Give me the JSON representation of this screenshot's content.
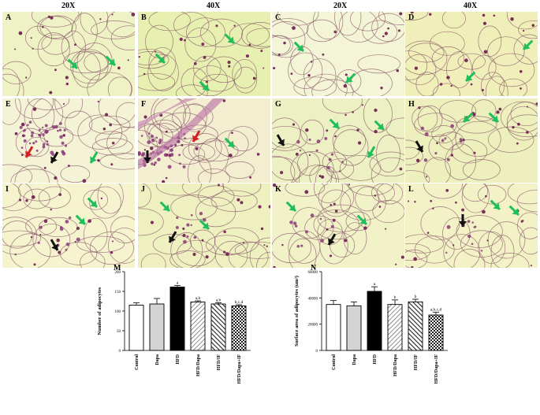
{
  "header": {
    "magnifications": [
      "20X",
      "40X",
      "20X",
      "40X"
    ]
  },
  "panels": [
    {
      "label": "A",
      "tone": "#eff2c4"
    },
    {
      "label": "B",
      "tone": "#e7f0b0"
    },
    {
      "label": "C",
      "tone": "#f4f5d6"
    },
    {
      "label": "D",
      "tone": "#f1efb9"
    },
    {
      "label": "E",
      "tone": "#f5f3d6"
    },
    {
      "label": "F",
      "tone": "#f3eed0"
    },
    {
      "label": "G",
      "tone": "#edf0c2"
    },
    {
      "label": "H",
      "tone": "#edf0bd"
    },
    {
      "label": "I",
      "tone": "#f6f3cf"
    },
    {
      "label": "J",
      "tone": "#eef0c0"
    },
    {
      "label": "K",
      "tone": "#f1f2c8"
    },
    {
      "label": "L",
      "tone": "#f3f1c6"
    }
  ],
  "arrow_colors": {
    "green": "#1fbf5a",
    "black": "#111111",
    "red": "#d42020"
  },
  "chart_data": [
    {
      "panel": "M",
      "type": "bar",
      "ylabel": "Number of adipocytes",
      "ylim": [
        0,
        200
      ],
      "yticks": [
        "0",
        "50",
        "100",
        "150",
        "200"
      ],
      "categories": [
        "Control",
        "Dapa",
        "HFD",
        "HFD/Dapa",
        "HFD/IF",
        "HFD/Dapa+IF"
      ],
      "values": [
        115,
        118,
        161,
        123,
        118,
        113
      ],
      "errors": [
        6,
        14,
        4,
        3,
        3,
        3
      ],
      "significance": [
        "",
        "",
        "a",
        "a,b",
        "a,b",
        "b,c,d"
      ]
    },
    {
      "panel": "N",
      "type": "bar",
      "ylabel": "Surface area of adipocytes (um²)",
      "ylim": [
        0,
        60000
      ],
      "yticks": [
        "0",
        "20000",
        "40000",
        "60000"
      ],
      "categories": [
        "Control",
        "Dapa",
        "HFD",
        "HFD/Dapa",
        "HFD/IF",
        "HFD/Dapa+IF"
      ],
      "values": [
        35000,
        34000,
        45000,
        35000,
        37000,
        27000
      ],
      "errors": [
        3000,
        3000,
        3500,
        3500,
        2000,
        2000
      ],
      "significance": [
        "",
        "",
        "a",
        "b",
        "b",
        "a,b,c,d"
      ]
    }
  ]
}
